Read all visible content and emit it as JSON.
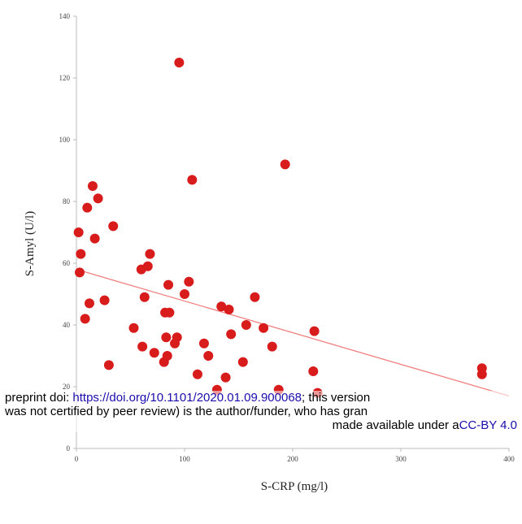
{
  "chart_data": {
    "type": "scatter",
    "xlabel": "S-CRP (mg/l)",
    "ylabel": "S-Amyl (U/l)",
    "xlim": [
      0,
      400
    ],
    "ylim": [
      0,
      140
    ],
    "x_ticks": [
      "0",
      "100",
      "200",
      "300",
      "400"
    ],
    "y_ticks": [
      "0",
      "20",
      "40",
      "60",
      "80",
      "100",
      "120",
      "140"
    ],
    "grid": false,
    "trendline": {
      "x": [
        0,
        400
      ],
      "y": [
        58,
        17
      ],
      "color": "#f08080"
    },
    "marker_color": "#d81b1b",
    "series": [
      {
        "points": [
          [
            2,
            70
          ],
          [
            3,
            57
          ],
          [
            4,
            63
          ],
          [
            8,
            42
          ],
          [
            10,
            78
          ],
          [
            12,
            47
          ],
          [
            15,
            85
          ],
          [
            17,
            68
          ],
          [
            20,
            81
          ],
          [
            26,
            48
          ],
          [
            30,
            27
          ],
          [
            34,
            72
          ],
          [
            53,
            39
          ],
          [
            60,
            58
          ],
          [
            61,
            33
          ],
          [
            63,
            49
          ],
          [
            66,
            59
          ],
          [
            68,
            63
          ],
          [
            72,
            31
          ],
          [
            81,
            28
          ],
          [
            82,
            44
          ],
          [
            83,
            36
          ],
          [
            84,
            30
          ],
          [
            85,
            53
          ],
          [
            86,
            44
          ],
          [
            91,
            34
          ],
          [
            93,
            36
          ],
          [
            95,
            125
          ],
          [
            100,
            50
          ],
          [
            104,
            54
          ],
          [
            107,
            87
          ],
          [
            112,
            24
          ],
          [
            118,
            34
          ],
          [
            122,
            30
          ],
          [
            130,
            19
          ],
          [
            134,
            46
          ],
          [
            138,
            23
          ],
          [
            141,
            45
          ],
          [
            143,
            37
          ],
          [
            154,
            28
          ],
          [
            157,
            40
          ],
          [
            165,
            49
          ],
          [
            173,
            39
          ],
          [
            181,
            33
          ],
          [
            187,
            19
          ],
          [
            193,
            92
          ],
          [
            219,
            25
          ],
          [
            220,
            38
          ],
          [
            223,
            18
          ],
          [
            375,
            24
          ],
          [
            375,
            26
          ]
        ]
      }
    ]
  },
  "overlay": {
    "line1_prefix": "preprint doi: ",
    "line1_link": "https://doi.org/10.1101/2020.01.09.900068",
    "line1_suffix": "; this version",
    "line2": "was not certified by peer review) is the author/funder, who has gran",
    "line3_prefix": "made available under a",
    "line3_link": "CC-BY 4.0"
  }
}
